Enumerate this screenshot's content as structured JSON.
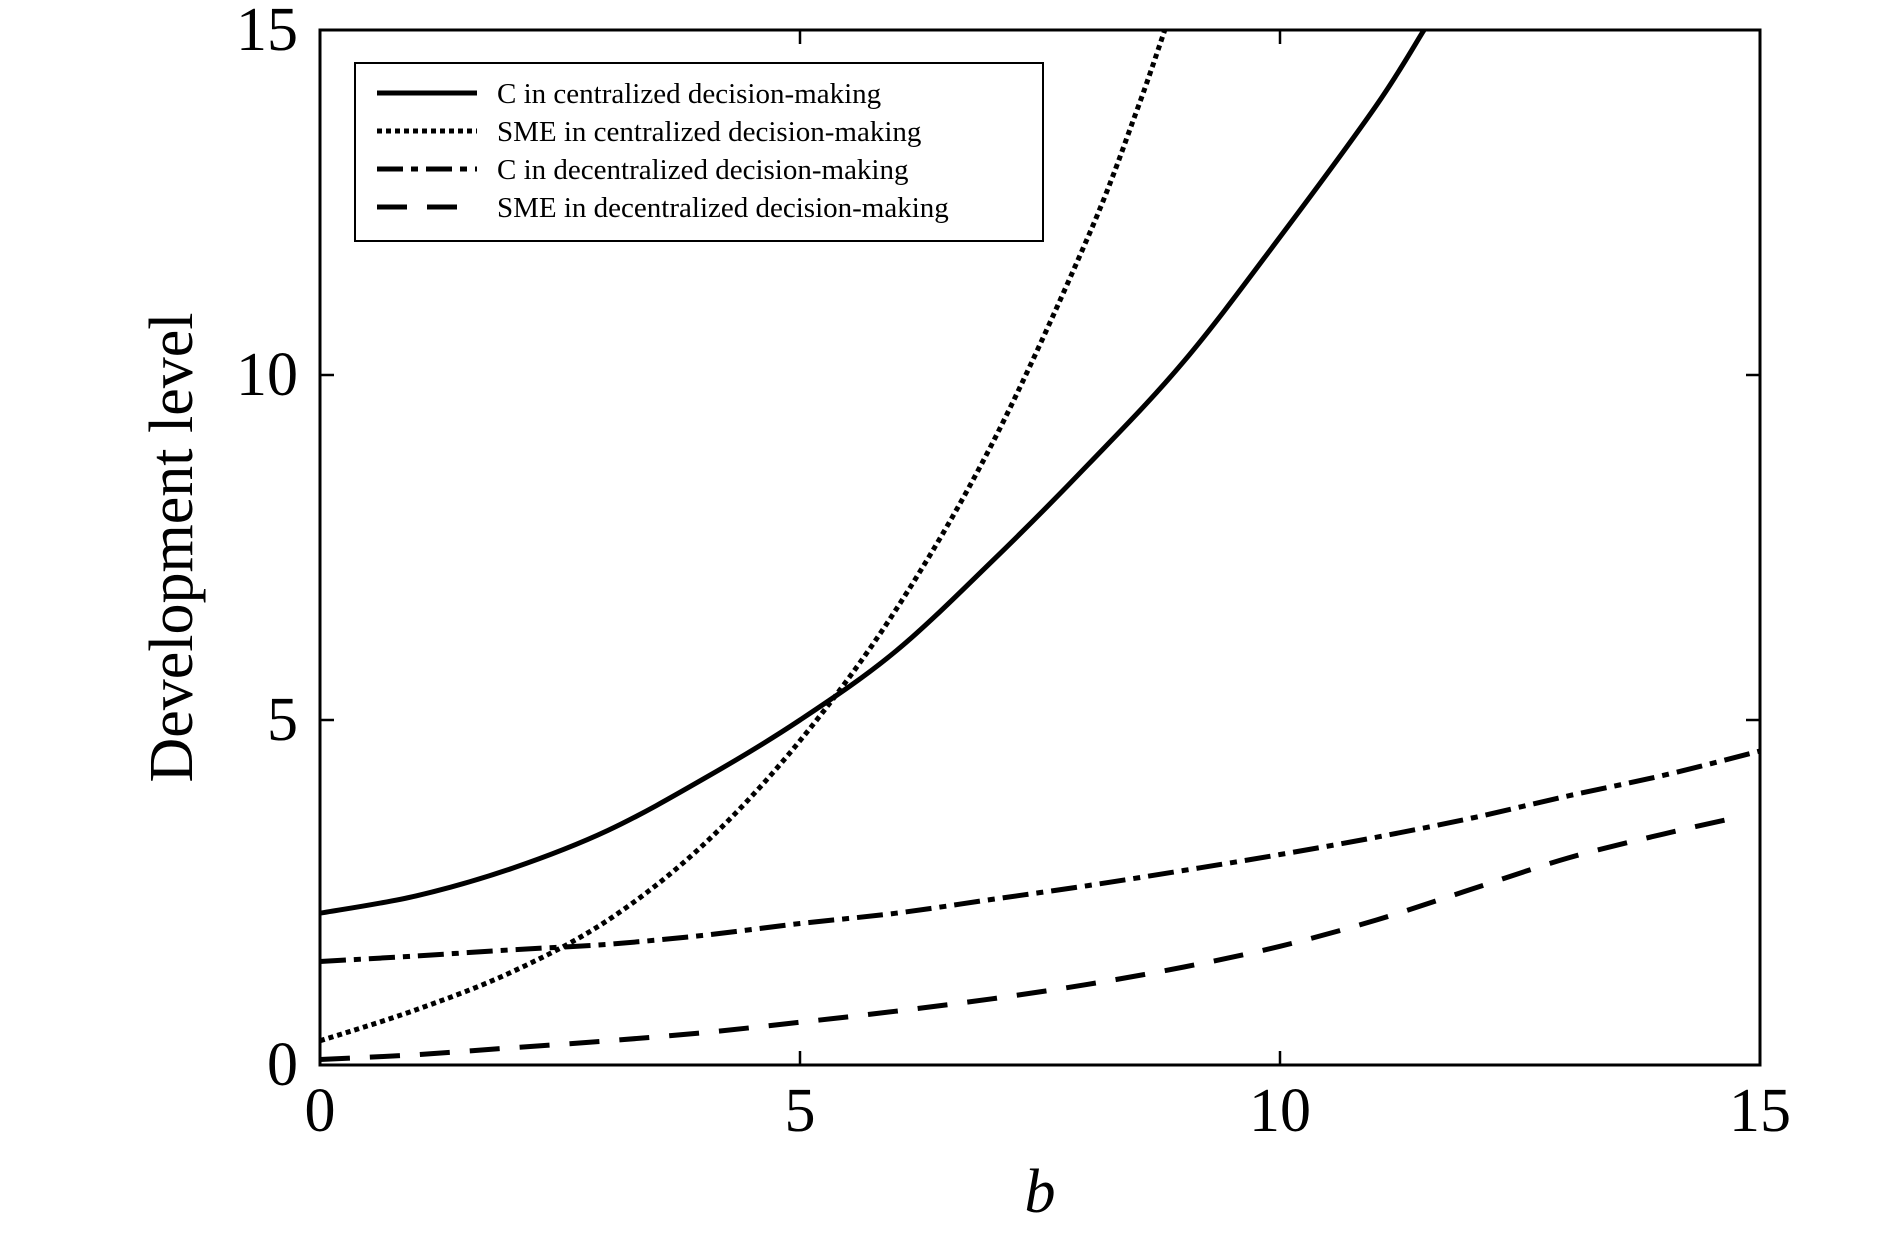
{
  "chart_data": {
    "type": "line",
    "title": "",
    "xlabel": "b",
    "ylabel": "Development level",
    "xlim": [
      0,
      15
    ],
    "ylim": [
      0,
      15
    ],
    "xticks": [
      0,
      5,
      10,
      15
    ],
    "yticks": [
      0,
      5,
      10,
      15
    ],
    "xtick_labels": [
      "0",
      "5",
      "10",
      "15"
    ],
    "ytick_labels": [
      "0",
      "5",
      "10",
      "15"
    ],
    "grid": false,
    "legend_position": "top-left",
    "series": [
      {
        "name": "C in centralized decision-making",
        "style": "solid",
        "color": "#000000",
        "x": [
          0,
          1,
          2,
          3,
          4,
          5,
          6,
          7,
          8,
          9,
          10,
          11,
          11.5
        ],
        "y": [
          2.2,
          2.45,
          2.85,
          3.4,
          4.15,
          5.0,
          6.0,
          7.3,
          8.7,
          10.2,
          12.0,
          13.9,
          15.0
        ]
      },
      {
        "name": "SME in centralized decision-making",
        "style": "dotted",
        "color": "#000000",
        "x": [
          0,
          1,
          2,
          3,
          4,
          5,
          6,
          7,
          8,
          8.5,
          8.8
        ],
        "y": [
          0.35,
          0.8,
          1.35,
          2.1,
          3.2,
          4.7,
          6.6,
          9.0,
          12.0,
          13.8,
          15.0
        ]
      },
      {
        "name": "C in decentralized decision-making",
        "style": "dashdot",
        "color": "#000000",
        "x": [
          0,
          1,
          2,
          3,
          4,
          5,
          6,
          7,
          8,
          9,
          10,
          11,
          12,
          13,
          14,
          15
        ],
        "y": [
          1.5,
          1.58,
          1.67,
          1.75,
          1.88,
          2.05,
          2.2,
          2.4,
          2.6,
          2.82,
          3.05,
          3.3,
          3.58,
          3.9,
          4.2,
          4.55
        ]
      },
      {
        "name": "SME in decentralized decision-making",
        "style": "dashed",
        "color": "#000000",
        "x": [
          0,
          1,
          2,
          3,
          4,
          5,
          6,
          7,
          8,
          9,
          10,
          11,
          12,
          13,
          14,
          14.8
        ],
        "y": [
          0.08,
          0.15,
          0.25,
          0.35,
          0.47,
          0.62,
          0.78,
          0.96,
          1.17,
          1.42,
          1.72,
          2.1,
          2.55,
          3.0,
          3.35,
          3.6
        ]
      }
    ]
  }
}
